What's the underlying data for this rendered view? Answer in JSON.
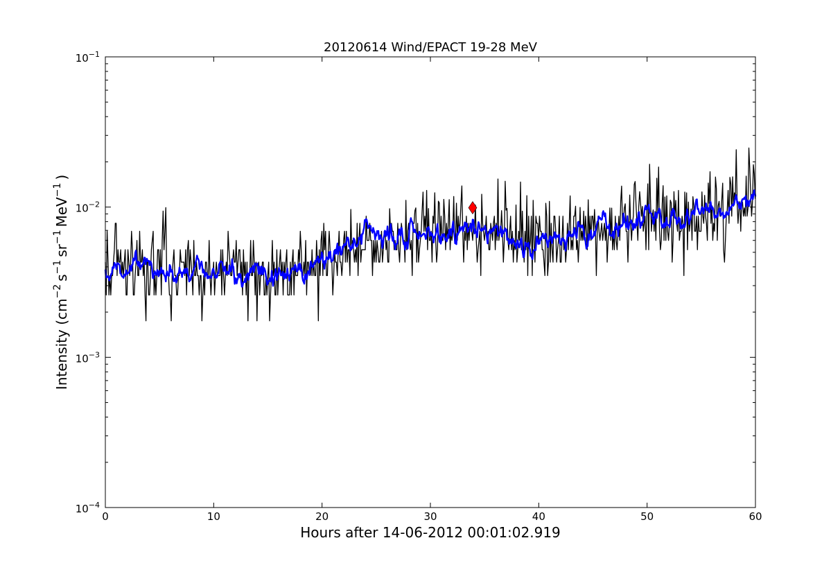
{
  "chart_data": {
    "type": "line",
    "title": "20120614 Wind/EPACT 19-28 MeV",
    "xlabel": "Hours after 14-06-2012 00:01:02.919",
    "ylabel": {
      "prefix": "Intensity (cm",
      "exp1": "−2",
      "mid1": "s",
      "exp2": "−1",
      "mid2": "sr",
      "exp3": "−1",
      "mid3": "MeV",
      "exp4": "−1",
      "suffix": ")"
    },
    "xlim": [
      0,
      60
    ],
    "ylim": [
      0.0001,
      0.1
    ],
    "yscale": "log",
    "x_ticks": [
      0,
      10,
      20,
      30,
      40,
      50,
      60
    ],
    "y_ticks": [
      {
        "value": 0.0001,
        "base": "10",
        "exp": "−4"
      },
      {
        "value": 0.001,
        "base": "10",
        "exp": "−3"
      },
      {
        "value": 0.01,
        "base": "10",
        "exp": "−2"
      },
      {
        "value": 0.1,
        "base": "10",
        "exp": "−1"
      }
    ],
    "series": [
      {
        "style": "raw",
        "color": "#000000",
        "cadence_hours": 0.0833,
        "quantization_levels": [
          0.00088,
          0.00175,
          0.0026,
          0.0035,
          0.0043,
          0.0052,
          0.006,
          0.0069,
          0.0078,
          0.0087
        ],
        "trend_anchors": {
          "x": [
            0,
            5,
            10,
            15,
            18,
            20,
            22,
            25,
            28,
            30,
            34,
            38,
            42,
            45,
            50,
            55,
            58,
            60
          ],
          "y": [
            0.0037,
            0.0038,
            0.0037,
            0.0036,
            0.0038,
            0.0045,
            0.0052,
            0.006,
            0.0065,
            0.0072,
            0.0068,
            0.0068,
            0.0065,
            0.0072,
            0.0082,
            0.009,
            0.011,
            0.0125
          ]
        }
      },
      {
        "style": "smoothed",
        "color": "#0000ff",
        "trend_anchors": {
          "x": [
            0,
            2,
            4,
            6,
            8,
            10,
            12,
            14,
            16,
            18,
            20,
            22,
            24,
            26,
            28,
            30,
            32,
            34,
            36,
            38,
            40,
            42,
            44,
            46,
            48,
            50,
            52,
            54,
            56,
            58,
            60
          ],
          "y": [
            0.0035,
            0.0038,
            0.0035,
            0.0036,
            0.0037,
            0.0036,
            0.0034,
            0.0036,
            0.0035,
            0.004,
            0.0043,
            0.005,
            0.0058,
            0.0063,
            0.0066,
            0.0073,
            0.0068,
            0.0068,
            0.0067,
            0.0066,
            0.0063,
            0.0066,
            0.0069,
            0.0076,
            0.0082,
            0.0085,
            0.0089,
            0.0086,
            0.0095,
            0.011,
            0.013
          ]
        }
      }
    ],
    "marker": {
      "x": 33.9,
      "y": 0.0099,
      "shape": "diamond",
      "color": "#ff0000"
    },
    "grid": false,
    "legend": "none"
  }
}
